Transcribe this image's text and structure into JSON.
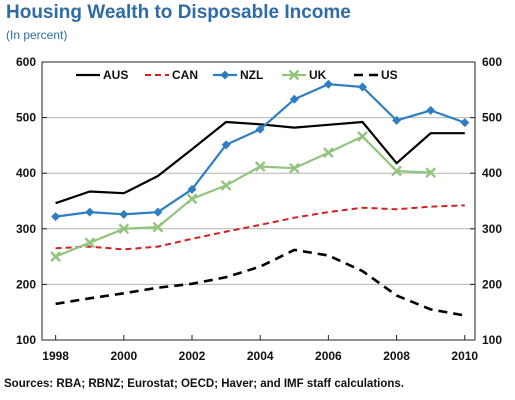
{
  "chart_data": {
    "type": "line",
    "title": "Housing Wealth to Disposable Income",
    "subtitle": "(In percent)",
    "source": "Sources: RBA; RBNZ; Eurostat; OECD; Haver; and IMF staff calculations.",
    "xlim": [
      1997.6,
      2010.3
    ],
    "ylim": [
      100,
      600
    ],
    "x_ticks": [
      1998,
      2000,
      2002,
      2004,
      2006,
      2008,
      2010
    ],
    "y_ticks": [
      100,
      200,
      300,
      400,
      500,
      600
    ],
    "grid": "horizontal",
    "legend_position": "top",
    "series": [
      {
        "name": "AUS",
        "color": "#000000",
        "style": "solid",
        "marker": "none",
        "x": [
          1998,
          1999,
          2000,
          2001,
          2002,
          2003,
          2004,
          2005,
          2006,
          2007,
          2008,
          2009,
          2010
        ],
        "values": [
          346,
          367,
          364,
          395,
          443,
          492,
          488,
          482,
          487,
          492,
          418,
          472,
          472
        ]
      },
      {
        "name": "CAN",
        "color": "#d32020",
        "style": "dashed",
        "marker": "none",
        "x": [
          1998,
          1999,
          2000,
          2001,
          2002,
          2003,
          2004,
          2005,
          2006,
          2007,
          2008,
          2009,
          2010
        ],
        "values": [
          265,
          268,
          263,
          268,
          282,
          295,
          307,
          320,
          330,
          338,
          335,
          340,
          342
        ]
      },
      {
        "name": "NZL",
        "color": "#2f7ec2",
        "style": "solid",
        "marker": "diamond",
        "x": [
          1998,
          1999,
          2000,
          2001,
          2002,
          2003,
          2004,
          2005,
          2006,
          2007,
          2008,
          2009,
          2010
        ],
        "values": [
          322,
          330,
          326,
          330,
          371,
          451,
          479,
          533,
          560,
          555,
          495,
          513,
          491
        ]
      },
      {
        "name": "UK",
        "color": "#93c47d",
        "style": "solid",
        "marker": "x",
        "x": [
          1998,
          1999,
          2000,
          2001,
          2002,
          2003,
          2004,
          2005,
          2006,
          2007,
          2008,
          2009
        ],
        "values": [
          250,
          275,
          300,
          303,
          354,
          378,
          412,
          409,
          437,
          466,
          404,
          401
        ]
      },
      {
        "name": "US",
        "color": "#000000",
        "style": "dashed-bold",
        "marker": "none",
        "x": [
          1998,
          1999,
          2000,
          2001,
          2002,
          2003,
          2004,
          2005,
          2006,
          2007,
          2008,
          2009,
          2010
        ],
        "values": [
          165,
          175,
          184,
          194,
          201,
          213,
          232,
          262,
          252,
          224,
          180,
          155,
          144
        ]
      }
    ]
  }
}
